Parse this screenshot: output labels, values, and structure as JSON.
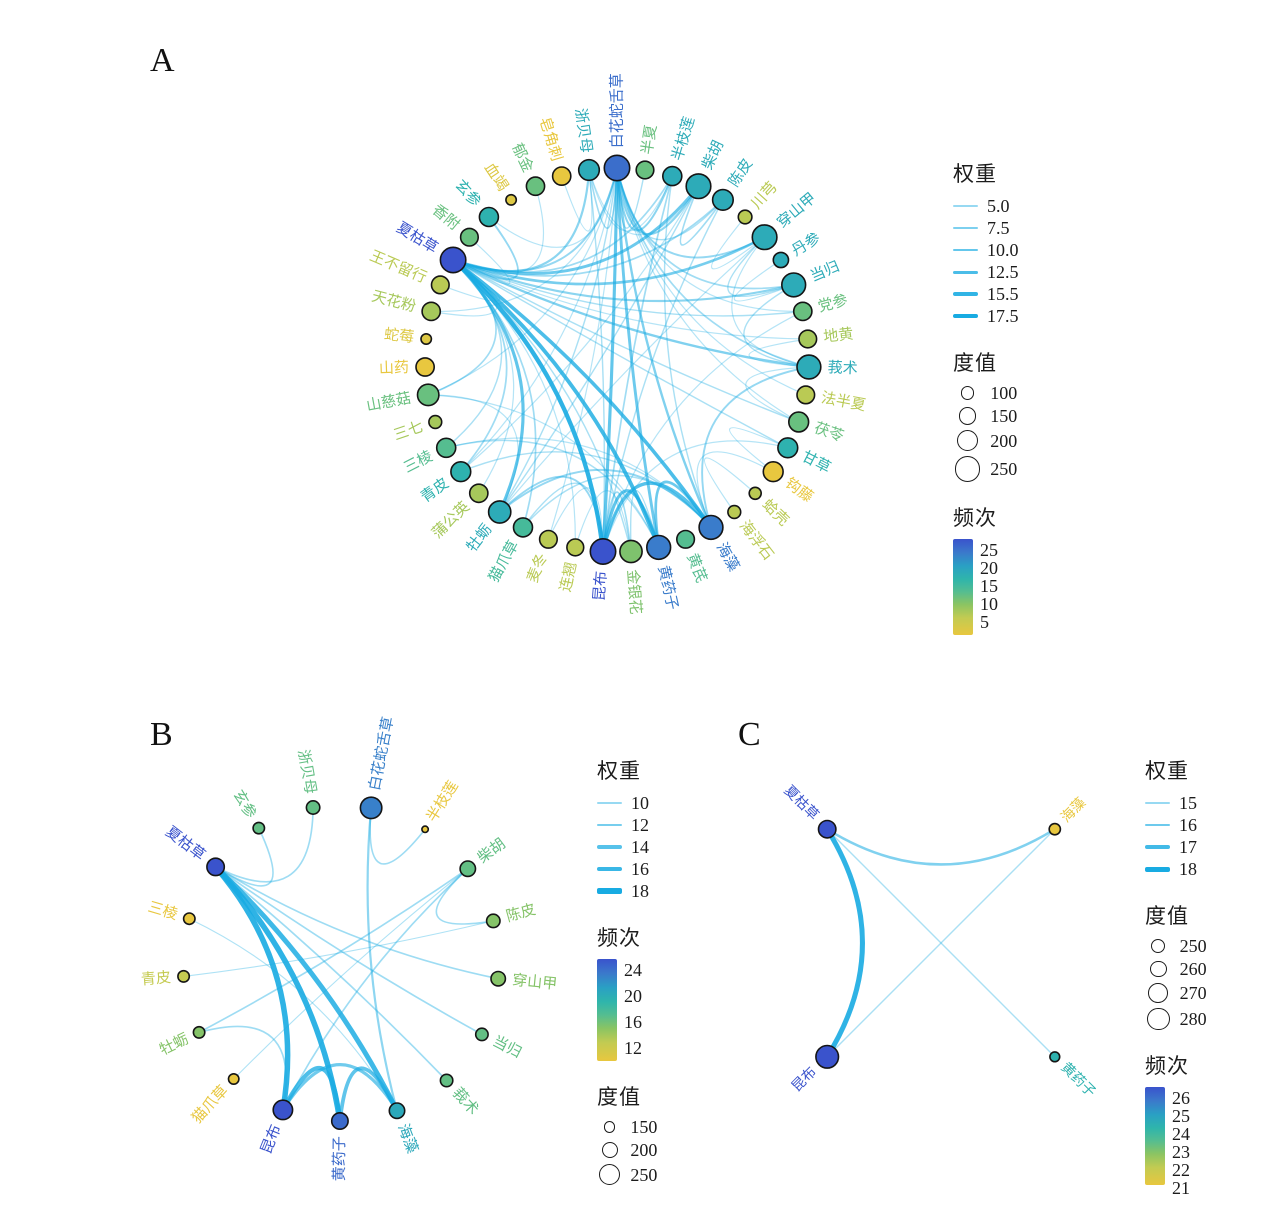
{
  "style": {
    "edge_color": "#18abe2",
    "node_stroke": "#151515",
    "freq_ramp": [
      [
        0,
        "#e8c73f"
      ],
      [
        0.18,
        "#c2cb52"
      ],
      [
        0.32,
        "#8ac463"
      ],
      [
        0.45,
        "#55bd90"
      ],
      [
        0.58,
        "#2fb5ab"
      ],
      [
        0.72,
        "#2aa0c4"
      ],
      [
        0.86,
        "#3b79cb"
      ],
      [
        1,
        "#3a53cc"
      ]
    ]
  },
  "chart_data": [
    {
      "type": "network",
      "panel_label": "A",
      "layout": "circular",
      "legend": {
        "order": [
          "weight",
          "degree",
          "frequency"
        ],
        "weight": {
          "title": "权重",
          "ticks": [
            "5.0",
            "7.5",
            "10.0",
            "12.5",
            "15.5",
            "17.5"
          ]
        },
        "degree": {
          "title": "度值",
          "ticks": [
            "100",
            "150",
            "200",
            "250"
          ]
        },
        "frequency": {
          "title": "频次",
          "ticks": [
            "25",
            "20",
            "15",
            "10",
            "5"
          ]
        }
      },
      "freq_domain": [
        5,
        25
      ],
      "nodes": [
        {
          "name": "白花蛇舌草",
          "frequency": 23,
          "degree": 250
        },
        {
          "name": "半夏",
          "frequency": 13,
          "degree": 150
        },
        {
          "name": "半枝莲",
          "frequency": 18,
          "degree": 170
        },
        {
          "name": "柴胡",
          "frequency": 18,
          "degree": 240
        },
        {
          "name": "陈皮",
          "frequency": 18,
          "degree": 190
        },
        {
          "name": "川芎",
          "frequency": 9,
          "degree": 100
        },
        {
          "name": "穿山甲",
          "frequency": 18,
          "degree": 240
        },
        {
          "name": "丹参",
          "frequency": 18,
          "degree": 120
        },
        {
          "name": "当归",
          "frequency": 18,
          "degree": 230
        },
        {
          "name": "党参",
          "frequency": 13,
          "degree": 160
        },
        {
          "name": "地黄",
          "frequency": 10,
          "degree": 150
        },
        {
          "name": "莪术",
          "frequency": 18,
          "degree": 230
        },
        {
          "name": "法半夏",
          "frequency": 9,
          "degree": 150
        },
        {
          "name": "茯苓",
          "frequency": 13,
          "degree": 180
        },
        {
          "name": "甘草",
          "frequency": 17,
          "degree": 180
        },
        {
          "name": "钩藤",
          "frequency": 5,
          "degree": 180
        },
        {
          "name": "蛤壳",
          "frequency": 9,
          "degree": 80
        },
        {
          "name": "海浮石",
          "frequency": 9,
          "degree": 90
        },
        {
          "name": "海藻",
          "frequency": 22,
          "degree": 230
        },
        {
          "name": "黄芪",
          "frequency": 14,
          "degree": 150
        },
        {
          "name": "黄药子",
          "frequency": 22,
          "degree": 230
        },
        {
          "name": "金银花",
          "frequency": 12,
          "degree": 210
        },
        {
          "name": "昆布",
          "frequency": 25,
          "degree": 250
        },
        {
          "name": "连翘",
          "frequency": 9,
          "degree": 140
        },
        {
          "name": "麦冬",
          "frequency": 9,
          "degree": 150
        },
        {
          "name": "猫爪草",
          "frequency": 15,
          "degree": 170
        },
        {
          "name": "牡蛎",
          "frequency": 18,
          "degree": 210
        },
        {
          "name": "蒲公英",
          "frequency": 10,
          "degree": 160
        },
        {
          "name": "青皮",
          "frequency": 17,
          "degree": 180
        },
        {
          "name": "三棱",
          "frequency": 14,
          "degree": 170
        },
        {
          "name": "三七",
          "frequency": 10,
          "degree": 90
        },
        {
          "name": "山慈菇",
          "frequency": 13,
          "degree": 200
        },
        {
          "name": "山药",
          "frequency": 5,
          "degree": 160
        },
        {
          "name": "蛇莓",
          "frequency": 6,
          "degree": 60
        },
        {
          "name": "天花粉",
          "frequency": 10,
          "degree": 160
        },
        {
          "name": "王不留行",
          "frequency": 9,
          "degree": 150
        },
        {
          "name": "夏枯草",
          "frequency": 25,
          "degree": 250
        },
        {
          "name": "香附",
          "frequency": 13,
          "degree": 150
        },
        {
          "name": "玄参",
          "frequency": 17,
          "degree": 170
        },
        {
          "name": "血竭",
          "frequency": 6,
          "degree": 60
        },
        {
          "name": "郁金",
          "frequency": 13,
          "degree": 160
        },
        {
          "name": "皂角刺",
          "frequency": 5,
          "degree": 160
        },
        {
          "name": "浙贝母",
          "frequency": 18,
          "degree": 190
        }
      ],
      "edges": [
        [
          36,
          22,
          18
        ],
        [
          36,
          20,
          16
        ],
        [
          36,
          18,
          15
        ],
        [
          36,
          26,
          13
        ],
        [
          36,
          3,
          12
        ],
        [
          36,
          6,
          11
        ],
        [
          36,
          11,
          10
        ],
        [
          36,
          8,
          9
        ],
        [
          36,
          42,
          9
        ],
        [
          36,
          0,
          8
        ],
        [
          36,
          38,
          8
        ],
        [
          36,
          2,
          7
        ],
        [
          36,
          4,
          7
        ],
        [
          36,
          25,
          7
        ],
        [
          36,
          28,
          7
        ],
        [
          36,
          31,
          7
        ],
        [
          36,
          29,
          6
        ],
        [
          36,
          9,
          6
        ],
        [
          36,
          13,
          6
        ],
        [
          36,
          14,
          6
        ],
        [
          36,
          21,
          6
        ],
        [
          36,
          10,
          5
        ],
        [
          36,
          34,
          5
        ],
        [
          36,
          35,
          5
        ],
        [
          36,
          40,
          5
        ],
        [
          36,
          23,
          5
        ],
        [
          36,
          27,
          5
        ],
        [
          36,
          37,
          5
        ],
        [
          0,
          22,
          13
        ],
        [
          0,
          20,
          12
        ],
        [
          0,
          18,
          10
        ],
        [
          0,
          3,
          9
        ],
        [
          0,
          2,
          9
        ],
        [
          0,
          6,
          8
        ],
        [
          0,
          8,
          7
        ],
        [
          0,
          11,
          7
        ],
        [
          0,
          42,
          7
        ],
        [
          0,
          1,
          6
        ],
        [
          0,
          4,
          6
        ],
        [
          0,
          26,
          6
        ],
        [
          0,
          9,
          5
        ],
        [
          0,
          13,
          5
        ],
        [
          0,
          28,
          5
        ],
        [
          0,
          31,
          5
        ],
        [
          0,
          38,
          5
        ],
        [
          0,
          12,
          5
        ],
        [
          0,
          24,
          5
        ],
        [
          0,
          34,
          5
        ],
        [
          22,
          18,
          14
        ],
        [
          22,
          20,
          13
        ],
        [
          20,
          18,
          12
        ],
        [
          22,
          21,
          7
        ],
        [
          22,
          26,
          8
        ],
        [
          22,
          25,
          6
        ],
        [
          22,
          2,
          7
        ],
        [
          22,
          42,
          6
        ],
        [
          22,
          4,
          6
        ],
        [
          22,
          9,
          5
        ],
        [
          22,
          14,
          5
        ],
        [
          22,
          24,
          5
        ],
        [
          20,
          21,
          6
        ],
        [
          20,
          29,
          6
        ],
        [
          20,
          31,
          5
        ],
        [
          18,
          26,
          8
        ],
        [
          18,
          25,
          6
        ],
        [
          18,
          11,
          8
        ],
        [
          18,
          28,
          6
        ],
        [
          18,
          15,
          5
        ],
        [
          18,
          29,
          5
        ],
        [
          18,
          2,
          6
        ],
        [
          3,
          4,
          7
        ],
        [
          3,
          26,
          6
        ],
        [
          3,
          28,
          5
        ],
        [
          3,
          42,
          5
        ],
        [
          6,
          8,
          6
        ],
        [
          6,
          26,
          5
        ],
        [
          6,
          11,
          5
        ],
        [
          8,
          11,
          6
        ],
        [
          8,
          7,
          5
        ],
        [
          26,
          31,
          5
        ],
        [
          14,
          15,
          5
        ],
        [
          16,
          17,
          5
        ],
        [
          42,
          41,
          5
        ],
        [
          11,
          13,
          5
        ],
        [
          21,
          23,
          5
        ],
        [
          10,
          11,
          5
        ],
        [
          2,
          42,
          5
        ],
        [
          5,
          6,
          5
        ]
      ]
    },
    {
      "type": "network",
      "panel_label": "B",
      "layout": "circular",
      "legend": {
        "order": [
          "weight",
          "frequency",
          "degree"
        ],
        "weight": {
          "title": "权重",
          "ticks": [
            "10",
            "12",
            "14",
            "16",
            "18"
          ]
        },
        "frequency": {
          "title": "频次",
          "ticks": [
            "24",
            "20",
            "16",
            "12"
          ]
        },
        "degree": {
          "title": "度值",
          "ticks": [
            "150",
            "200",
            "250"
          ]
        }
      },
      "freq_domain": [
        12,
        24
      ],
      "nodes": [
        {
          "name": "白花蛇舌草",
          "frequency": 22,
          "degree": 250
        },
        {
          "name": "半枝莲",
          "frequency": 12,
          "degree": 60
        },
        {
          "name": "柴胡",
          "frequency": 17,
          "degree": 190
        },
        {
          "name": "陈皮",
          "frequency": 16,
          "degree": 170
        },
        {
          "name": "穿山甲",
          "frequency": 16,
          "degree": 180
        },
        {
          "name": "当归",
          "frequency": 17,
          "degree": 160
        },
        {
          "name": "莪术",
          "frequency": 17,
          "degree": 160
        },
        {
          "name": "海藻",
          "frequency": 20,
          "degree": 190
        },
        {
          "name": "黄药子",
          "frequency": 23,
          "degree": 200
        },
        {
          "name": "昆布",
          "frequency": 24,
          "degree": 230
        },
        {
          "name": "猫爪草",
          "frequency": 12,
          "degree": 140
        },
        {
          "name": "牡蛎",
          "frequency": 16,
          "degree": 150
        },
        {
          "name": "青皮",
          "frequency": 14,
          "degree": 150
        },
        {
          "name": "三棱",
          "frequency": 12,
          "degree": 150
        },
        {
          "name": "夏枯草",
          "frequency": 24,
          "degree": 210
        },
        {
          "name": "玄参",
          "frequency": 17,
          "degree": 150
        },
        {
          "name": "浙贝母",
          "frequency": 17,
          "degree": 170
        }
      ],
      "edges": [
        [
          14,
          9,
          18
        ],
        [
          14,
          8,
          18
        ],
        [
          14,
          7,
          17
        ],
        [
          14,
          4,
          11
        ],
        [
          14,
          5,
          11
        ],
        [
          14,
          6,
          11
        ],
        [
          14,
          15,
          11
        ],
        [
          14,
          16,
          11
        ],
        [
          0,
          1,
          11
        ],
        [
          0,
          7,
          12
        ],
        [
          2,
          3,
          11
        ],
        [
          2,
          9,
          11
        ],
        [
          2,
          11,
          11
        ],
        [
          2,
          10,
          10
        ],
        [
          12,
          3,
          10
        ],
        [
          13,
          7,
          10
        ],
        [
          11,
          9,
          11
        ],
        [
          9,
          8,
          16
        ],
        [
          8,
          7,
          15
        ],
        [
          9,
          7,
          14
        ]
      ]
    },
    {
      "type": "network",
      "panel_label": "C",
      "layout": "circular",
      "legend": {
        "order": [
          "weight",
          "degree",
          "frequency"
        ],
        "weight": {
          "title": "权重",
          "ticks": [
            "15",
            "16",
            "17",
            "18"
          ]
        },
        "degree": {
          "title": "度值",
          "ticks": [
            "250",
            "260",
            "270",
            "280"
          ]
        },
        "frequency": {
          "title": "频次",
          "ticks": [
            "26",
            "25",
            "24",
            "23",
            "22",
            "21"
          ]
        }
      },
      "freq_domain": [
        21,
        26
      ],
      "nodes": [
        {
          "name": "海藻",
          "frequency": 21,
          "degree": 240
        },
        {
          "name": "黄药子",
          "frequency": 24,
          "degree": 235
        },
        {
          "name": "昆布",
          "frequency": 26,
          "degree": 280
        },
        {
          "name": "夏枯草",
          "frequency": 26,
          "degree": 262
        }
      ],
      "edges": [
        [
          3,
          2,
          18
        ],
        [
          3,
          0,
          16
        ],
        [
          2,
          0,
          15
        ],
        [
          3,
          1,
          15
        ]
      ]
    }
  ]
}
